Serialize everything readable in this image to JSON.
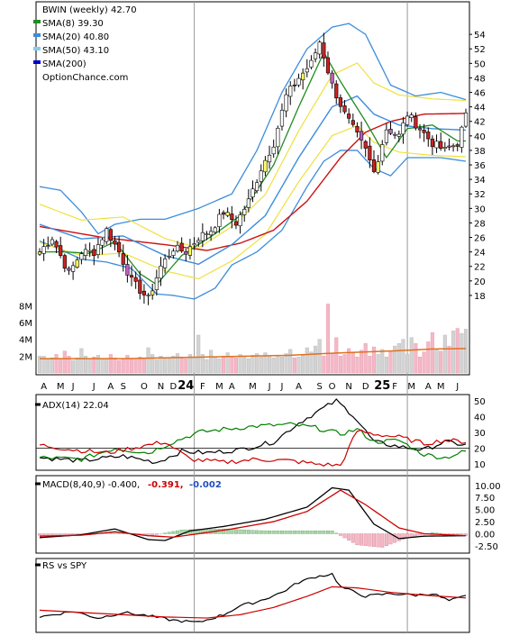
{
  "chart_data": [
    {
      "type": "candlestick",
      "panel": "price",
      "legend": [
        {
          "label": "BWIN (weekly) 42.70",
          "color": null
        },
        {
          "label": "SMA(8) 39.30",
          "color": "#228b22"
        },
        {
          "label": "SMA(20) 40.80",
          "color": "#3c8ddc"
        },
        {
          "label": "SMA(50) 43.10",
          "color": "#87ceeb"
        },
        {
          "label": "SMA(200)",
          "color": "#0000cd"
        }
      ],
      "watermark": "OptionChance.com",
      "x_ticks": [
        "A",
        "M",
        "J",
        "J",
        "A",
        "S",
        "O",
        "N",
        "D",
        "24",
        "F",
        "M",
        "A",
        "M",
        "J",
        "J",
        "A",
        "S",
        "O",
        "N",
        "D",
        "25",
        "F",
        "M",
        "A",
        "M",
        "J"
      ],
      "y_ticks": [
        18,
        20,
        22,
        24,
        26,
        28,
        30,
        32,
        34,
        36,
        38,
        40,
        42,
        44,
        46,
        48,
        50,
        52,
        54
      ],
      "ylim": [
        16.5,
        57
      ],
      "anchors_close": [
        [
          0,
          24
        ],
        [
          3,
          26
        ],
        [
          7,
          21
        ],
        [
          10,
          24
        ],
        [
          13,
          24
        ],
        [
          16,
          27
        ],
        [
          19,
          24
        ],
        [
          22,
          20
        ],
        [
          26,
          17.5
        ],
        [
          29,
          22
        ],
        [
          32,
          24.5
        ],
        [
          35,
          24
        ],
        [
          38,
          26
        ],
        [
          41,
          27
        ],
        [
          44,
          29.5
        ],
        [
          47,
          28
        ],
        [
          50,
          31
        ],
        [
          53,
          35.5
        ],
        [
          56,
          39
        ],
        [
          59,
          45.5
        ],
        [
          62,
          48
        ],
        [
          65,
          50
        ],
        [
          67,
          53
        ],
        [
          70,
          47
        ],
        [
          73,
          43
        ],
        [
          76,
          40
        ],
        [
          78,
          38
        ],
        [
          80,
          35
        ],
        [
          83,
          41
        ],
        [
          86,
          40
        ],
        [
          88,
          43
        ],
        [
          91,
          41
        ],
        [
          94,
          39
        ],
        [
          97,
          38
        ],
        [
          100,
          39
        ],
        [
          102,
          42.7
        ]
      ],
      "sma_anchors": {
        "sma8": [
          [
            0,
            24
          ],
          [
            6,
            24
          ],
          [
            12,
            23.8
          ],
          [
            18,
            25.4
          ],
          [
            24,
            21
          ],
          [
            28,
            19.5
          ],
          [
            34,
            23.5
          ],
          [
            42,
            26.5
          ],
          [
            48,
            29
          ],
          [
            56,
            36
          ],
          [
            62,
            44
          ],
          [
            68,
            51.5
          ],
          [
            72,
            47.5
          ],
          [
            78,
            42
          ],
          [
            83,
            37
          ],
          [
            88,
            41
          ],
          [
            94,
            41.5
          ],
          [
            100,
            39.3
          ],
          [
            102,
            39.3
          ]
        ],
        "sma20": [
          [
            0,
            27.8
          ],
          [
            10,
            25.8
          ],
          [
            20,
            26.2
          ],
          [
            30,
            23.5
          ],
          [
            38,
            22.3
          ],
          [
            46,
            25
          ],
          [
            54,
            29
          ],
          [
            62,
            37
          ],
          [
            70,
            44
          ],
          [
            76,
            45.5
          ],
          [
            80,
            43
          ],
          [
            86,
            41.5
          ],
          [
            94,
            41
          ],
          [
            102,
            40.8
          ]
        ],
        "sma50": [
          [
            0,
            27.5
          ],
          [
            15,
            26
          ],
          [
            30,
            25
          ],
          [
            40,
            24.2
          ],
          [
            48,
            25.2
          ],
          [
            56,
            27
          ],
          [
            64,
            31
          ],
          [
            72,
            37
          ],
          [
            78,
            40.5
          ],
          [
            84,
            42
          ],
          [
            92,
            43
          ],
          [
            102,
            43.1
          ]
        ],
        "bb_upper": [
          [
            0,
            33
          ],
          [
            5,
            32.5
          ],
          [
            10,
            29.5
          ],
          [
            14,
            26.5
          ],
          [
            18,
            27.8
          ],
          [
            24,
            28.5
          ],
          [
            30,
            28.5
          ],
          [
            38,
            30
          ],
          [
            46,
            32
          ],
          [
            52,
            38
          ],
          [
            58,
            46
          ],
          [
            64,
            52
          ],
          [
            70,
            55
          ],
          [
            74,
            55.5
          ],
          [
            78,
            54
          ],
          [
            84,
            47
          ],
          [
            90,
            45.5
          ],
          [
            96,
            46
          ],
          [
            102,
            45
          ]
        ],
        "bb_lower": [
          [
            0,
            25.5
          ],
          [
            5,
            24.3
          ],
          [
            10,
            23
          ],
          [
            16,
            22.6
          ],
          [
            22,
            21.7
          ],
          [
            28,
            18.2
          ],
          [
            32,
            18
          ],
          [
            37,
            17.5
          ],
          [
            42,
            19
          ],
          [
            46,
            22.2
          ],
          [
            52,
            24
          ],
          [
            58,
            27
          ],
          [
            64,
            33
          ],
          [
            68,
            36.5
          ],
          [
            72,
            38
          ],
          [
            76,
            38
          ],
          [
            80,
            35.5
          ],
          [
            84,
            34.5
          ],
          [
            88,
            37
          ],
          [
            92,
            37
          ],
          [
            96,
            37
          ],
          [
            102,
            36.5
          ]
        ]
      },
      "volume": {
        "y_ticks": [
          "2M",
          "4M",
          "6M",
          "8M"
        ],
        "ylim": [
          0,
          9
        ],
        "approx_values_millions": [
          2,
          2,
          1.6,
          1.8,
          2.2,
          1.7,
          2.6,
          2,
          1.5,
          1.8,
          2.9,
          2,
          1.6,
          1.9,
          2.1,
          1.6,
          1.7,
          2.2,
          1.8,
          1.5,
          1.6,
          2.1,
          1.7,
          1.6,
          1.9,
          1.8,
          3,
          2.2,
          1.6,
          2,
          1.8,
          1.7,
          2,
          2.3,
          1.9,
          1.7,
          2.2,
          1.8,
          4.5,
          2.2,
          1.6,
          2.7,
          1.9,
          1.7,
          2,
          2.4,
          2,
          1.8,
          2.2,
          1.9,
          1.7,
          2.1,
          2.3,
          1.9,
          2.4,
          2,
          1.8,
          2.1,
          1.9,
          2.3,
          2.8,
          1.8,
          1.9,
          2.1,
          3,
          2.5,
          3.2,
          4,
          2,
          8.2,
          2.3,
          4.2,
          2,
          2.2,
          2.9,
          2.5,
          1.9,
          2.7,
          3.5,
          2,
          3.1,
          2.2,
          2.8,
          1.9,
          2.6,
          3.2,
          3.5,
          4,
          2.2,
          4.2,
          3.5,
          1.9,
          2.5,
          3.7,
          4.8,
          2.8,
          2.6,
          4.5,
          3.2,
          5,
          5.3,
          4.7,
          5.2
        ],
        "avg_anchors": [
          [
            0,
            1.7
          ],
          [
            20,
            1.7
          ],
          [
            40,
            1.9
          ],
          [
            60,
            2.1
          ],
          [
            70,
            2.35
          ],
          [
            86,
            2.65
          ],
          [
            94,
            2.85
          ],
          [
            102,
            2.9
          ]
        ]
      }
    },
    {
      "type": "line",
      "panel": "adx",
      "label": "ADX(14) 22.04",
      "y_ticks": [
        10,
        20,
        30,
        40,
        50
      ],
      "ylim": [
        6,
        54
      ],
      "reference_line": 20,
      "series": [
        {
          "color": "#000000",
          "anchors": [
            [
              0,
              14
            ],
            [
              10,
              12
            ],
            [
              20,
              15
            ],
            [
              28,
              11
            ],
            [
              34,
              18
            ],
            [
              40,
              17
            ],
            [
              48,
              19
            ],
            [
              56,
              24
            ],
            [
              62,
              36
            ],
            [
              67,
              44
            ],
            [
              71,
              50
            ],
            [
              75,
              41
            ],
            [
              80,
              24
            ],
            [
              86,
              21
            ],
            [
              92,
              19
            ],
            [
              97,
              24
            ],
            [
              102,
              22
            ]
          ]
        },
        {
          "color": "#008000",
          "anchors": [
            [
              0,
              14
            ],
            [
              10,
              13
            ],
            [
              18,
              20
            ],
            [
              26,
              17
            ],
            [
              32,
              24
            ],
            [
              38,
              30
            ],
            [
              44,
              32
            ],
            [
              52,
              34
            ],
            [
              60,
              35
            ],
            [
              66,
              33
            ],
            [
              72,
              29
            ],
            [
              76,
              32
            ],
            [
              80,
              24
            ],
            [
              86,
              25
            ],
            [
              92,
              16
            ],
            [
              97,
              14
            ],
            [
              102,
              18
            ]
          ]
        },
        {
          "color": "#cc0000",
          "anchors": [
            [
              0,
              22
            ],
            [
              8,
              19
            ],
            [
              16,
              17
            ],
            [
              24,
              21
            ],
            [
              30,
              24
            ],
            [
              36,
              13
            ],
            [
              44,
              11
            ],
            [
              52,
              13
            ],
            [
              60,
              12
            ],
            [
              66,
              10
            ],
            [
              72,
              9
            ],
            [
              76,
              31
            ],
            [
              80,
              29
            ],
            [
              86,
              27
            ],
            [
              92,
              23
            ],
            [
              97,
              25
            ],
            [
              102,
              24
            ]
          ]
        }
      ]
    },
    {
      "type": "line",
      "panel": "macd",
      "label": "MACD(8,40,9) -0.400,",
      "value_red": "-0.391,",
      "value_blue": "-0.002",
      "y_ticks": [
        "10.00",
        "7.50",
        "5.00",
        "2.50",
        "0.00",
        "-2.50"
      ],
      "ylim": [
        -4,
        12
      ],
      "histogram_anchors": [
        [
          0,
          -0.3
        ],
        [
          10,
          -0.3
        ],
        [
          18,
          0.5
        ],
        [
          26,
          -0.5
        ],
        [
          34,
          0.8
        ],
        [
          44,
          1
        ],
        [
          54,
          0.6
        ],
        [
          64,
          0.6
        ],
        [
          70,
          0.6
        ],
        [
          76,
          -2.3
        ],
        [
          82,
          -2.8
        ],
        [
          88,
          -0.8
        ],
        [
          94,
          0.2
        ],
        [
          102,
          -0.4
        ]
      ],
      "series": [
        {
          "color": "#000000",
          "anchors": [
            [
              0,
              -0.8
            ],
            [
              10,
              -0.2
            ],
            [
              18,
              1
            ],
            [
              26,
              -1.2
            ],
            [
              30,
              -1.4
            ],
            [
              36,
              0.6
            ],
            [
              44,
              1.5
            ],
            [
              54,
              3
            ],
            [
              64,
              5.5
            ],
            [
              70,
              9.5
            ],
            [
              74,
              9
            ],
            [
              80,
              2
            ],
            [
              86,
              -1
            ],
            [
              92,
              -0.5
            ],
            [
              102,
              -0.4
            ]
          ]
        },
        {
          "color": "#cc0000",
          "anchors": [
            [
              0,
              -0.5
            ],
            [
              10,
              -0.3
            ],
            [
              18,
              0.4
            ],
            [
              26,
              -0.4
            ],
            [
              32,
              -0.7
            ],
            [
              38,
              0
            ],
            [
              46,
              1
            ],
            [
              56,
              2.5
            ],
            [
              64,
              4.6
            ],
            [
              72,
              9
            ],
            [
              78,
              6
            ],
            [
              86,
              1.2
            ],
            [
              92,
              0
            ],
            [
              102,
              -0.39
            ]
          ]
        }
      ]
    },
    {
      "type": "line",
      "panel": "rs",
      "label": "RS vs SPY",
      "ylim": [
        0,
        1
      ],
      "series": [
        {
          "color": "#000000",
          "anchors": [
            [
              0,
              0.18
            ],
            [
              8,
              0.28
            ],
            [
              14,
              0.16
            ],
            [
              20,
              0.26
            ],
            [
              26,
              0.2
            ],
            [
              32,
              0.12
            ],
            [
              38,
              0.08
            ],
            [
              44,
              0.22
            ],
            [
              48,
              0.38
            ],
            [
              52,
              0.45
            ],
            [
              58,
              0.62
            ],
            [
              62,
              0.8
            ],
            [
              66,
              0.9
            ],
            [
              70,
              0.95
            ],
            [
              72,
              0.72
            ],
            [
              78,
              0.55
            ],
            [
              84,
              0.6
            ],
            [
              90,
              0.57
            ],
            [
              94,
              0.6
            ],
            [
              98,
              0.47
            ],
            [
              102,
              0.55
            ]
          ]
        },
        {
          "color": "#cc0000",
          "anchors": [
            [
              0,
              0.3
            ],
            [
              10,
              0.26
            ],
            [
              20,
              0.22
            ],
            [
              30,
              0.18
            ],
            [
              40,
              0.16
            ],
            [
              48,
              0.22
            ],
            [
              56,
              0.35
            ],
            [
              64,
              0.55
            ],
            [
              70,
              0.72
            ],
            [
              76,
              0.7
            ],
            [
              84,
              0.62
            ],
            [
              92,
              0.57
            ],
            [
              102,
              0.52
            ]
          ]
        }
      ]
    }
  ]
}
